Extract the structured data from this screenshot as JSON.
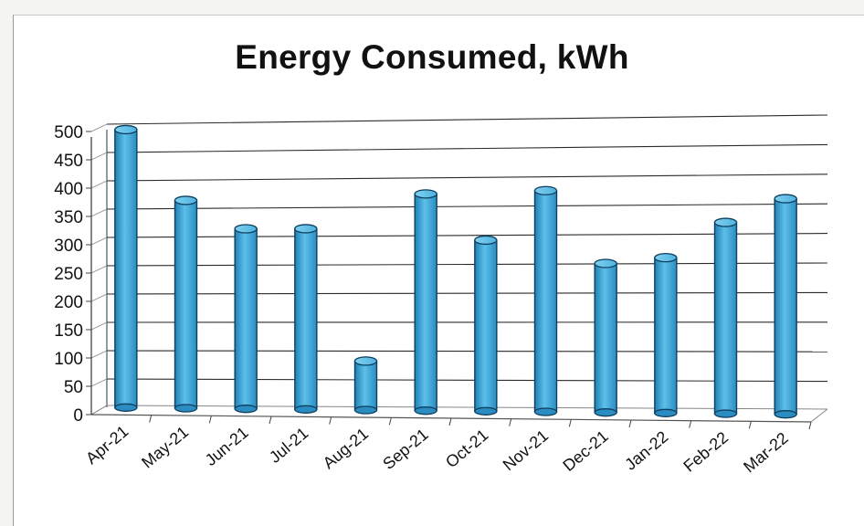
{
  "chart_data": {
    "type": "bar",
    "title": "Energy Consumed, kWh",
    "xlabel": "",
    "ylabel": "",
    "ylim": [
      0,
      500
    ],
    "yticks": [
      0,
      50,
      100,
      150,
      200,
      250,
      300,
      350,
      400,
      450,
      500
    ],
    "categories": [
      "Apr-21",
      "May-21",
      "Jun-21",
      "Jul-21",
      "Aug-21",
      "Sep-21",
      "Oct-21",
      "Nov-21",
      "Dec-21",
      "Jan-22",
      "Feb-22",
      "Mar-22"
    ],
    "values": [
      490,
      365,
      315,
      315,
      85,
      375,
      295,
      380,
      255,
      265,
      325,
      365
    ],
    "grid": true,
    "legend": "none",
    "bar_color": "#3fa6d6"
  }
}
